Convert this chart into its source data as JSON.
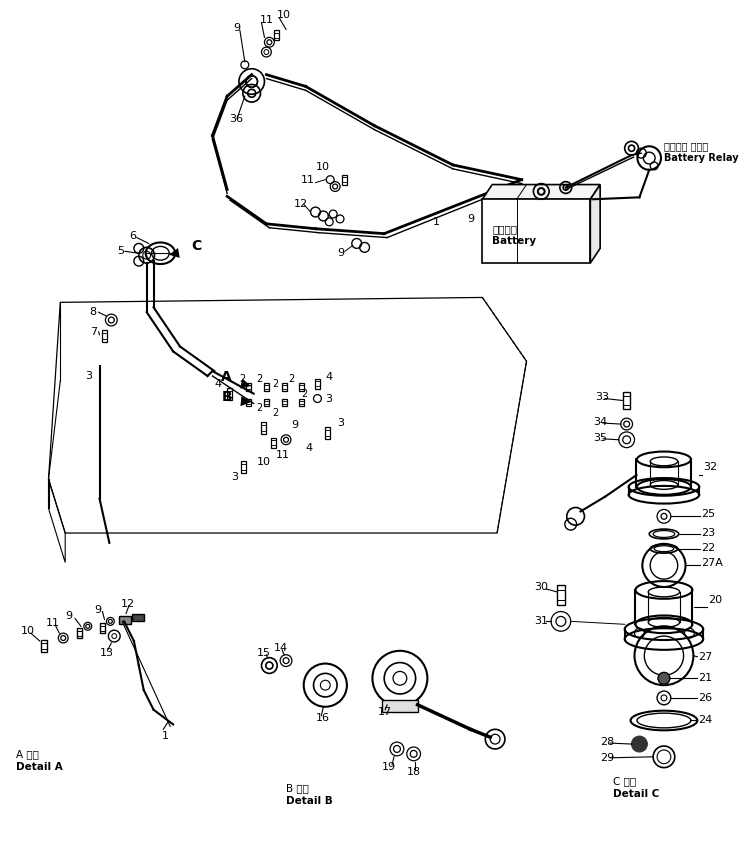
{
  "bg_color": "#ffffff",
  "line_color": "#000000",
  "figsize": [
    7.55,
    8.55
  ],
  "dpi": 100,
  "labels": {
    "battery_relay_jp": "バッテリ リレー",
    "battery_relay_en": "Battery Relay",
    "battery_jp": "バッテリ",
    "battery_en": "Battery",
    "detail_a_jp": "A 詳細",
    "detail_a_en": "Detail A",
    "detail_b_jp": "B 詳細",
    "detail_b_en": "Detail B",
    "detail_c_jp": "C 詳細",
    "detail_c_en": "Detail C"
  }
}
